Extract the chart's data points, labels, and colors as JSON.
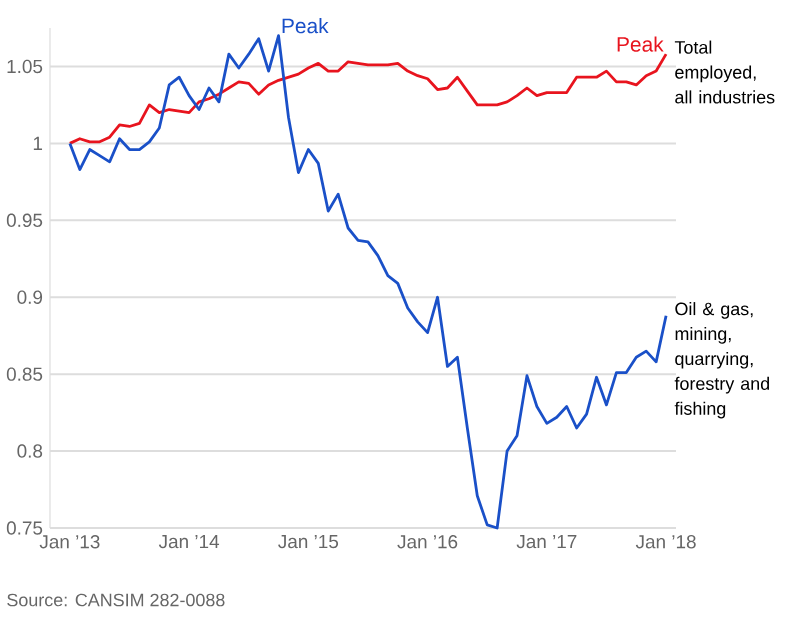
{
  "chart_data": {
    "type": "line",
    "x": [
      "2013-01",
      "2013-02",
      "2013-03",
      "2013-04",
      "2013-05",
      "2013-06",
      "2013-07",
      "2013-08",
      "2013-09",
      "2013-10",
      "2013-11",
      "2013-12",
      "2014-01",
      "2014-02",
      "2014-03",
      "2014-04",
      "2014-05",
      "2014-06",
      "2014-07",
      "2014-08",
      "2014-09",
      "2014-10",
      "2014-11",
      "2014-12",
      "2015-01",
      "2015-02",
      "2015-03",
      "2015-04",
      "2015-05",
      "2015-06",
      "2015-07",
      "2015-08",
      "2015-09",
      "2015-10",
      "2015-11",
      "2015-12",
      "2016-01",
      "2016-02",
      "2016-03",
      "2016-04",
      "2016-05",
      "2016-06",
      "2016-07",
      "2016-08",
      "2016-09",
      "2016-10",
      "2016-11",
      "2016-12",
      "2017-01",
      "2017-02",
      "2017-03",
      "2017-04",
      "2017-05",
      "2017-06",
      "2017-07",
      "2017-08",
      "2017-09",
      "2017-10",
      "2017-11",
      "2017-12",
      "2018-01"
    ],
    "series": [
      {
        "name": "Total employed, all industries",
        "color": "#e8141e",
        "values": [
          1.0,
          1.003,
          1.001,
          1.001,
          1.004,
          1.012,
          1.011,
          1.013,
          1.025,
          1.02,
          1.022,
          1.021,
          1.02,
          1.027,
          1.029,
          1.032,
          1.036,
          1.04,
          1.039,
          1.032,
          1.038,
          1.041,
          1.043,
          1.045,
          1.049,
          1.052,
          1.047,
          1.047,
          1.053,
          1.052,
          1.051,
          1.051,
          1.051,
          1.052,
          1.047,
          1.044,
          1.042,
          1.035,
          1.036,
          1.043,
          1.034,
          1.025,
          1.025,
          1.025,
          1.027,
          1.031,
          1.036,
          1.031,
          1.033,
          1.033,
          1.033,
          1.043,
          1.043,
          1.043,
          1.047,
          1.04,
          1.04,
          1.038,
          1.044,
          1.047,
          1.058
        ]
      },
      {
        "name": "Oil & gas, mining, quarrying, forestry and fishing",
        "color": "#1a50c8",
        "values": [
          1.0,
          0.983,
          0.996,
          0.992,
          0.988,
          1.003,
          0.996,
          0.996,
          1.001,
          1.01,
          1.038,
          1.043,
          1.031,
          1.022,
          1.036,
          1.027,
          1.058,
          1.049,
          1.058,
          1.068,
          1.047,
          1.07,
          1.017,
          0.981,
          0.996,
          0.987,
          0.956,
          0.967,
          0.945,
          0.937,
          0.936,
          0.927,
          0.914,
          0.909,
          0.893,
          0.884,
          0.877,
          0.9,
          0.855,
          0.861,
          0.815,
          0.771,
          0.752,
          0.75,
          0.8,
          0.81,
          0.849,
          0.829,
          0.818,
          0.822,
          0.829,
          0.815,
          0.824,
          0.848,
          0.83,
          0.851,
          0.851,
          0.861,
          0.865,
          0.858,
          0.888
        ]
      }
    ],
    "xlim": [
      "2012-11",
      "2018-02"
    ],
    "xticks": [
      {
        "value": "2013-01",
        "label": "Jan ’13"
      },
      {
        "value": "2014-01",
        "label": "Jan ’14"
      },
      {
        "value": "2015-01",
        "label": "Jan ’15"
      },
      {
        "value": "2016-01",
        "label": "Jan ’16"
      },
      {
        "value": "2017-01",
        "label": "Jan ’17"
      },
      {
        "value": "2018-01",
        "label": "Jan ’18"
      }
    ],
    "ylim": [
      0.75,
      1.075
    ],
    "yticks": [
      0.75,
      0.8,
      0.85,
      0.9,
      0.95,
      1,
      1.05
    ],
    "grid": "y",
    "legend": false,
    "marker": "none",
    "line_style": "solid",
    "annotations": [
      {
        "text": "Peak",
        "x": "2014-10",
        "y": 1.07
      },
      {
        "text": "Peak",
        "x": "2018-01",
        "y": 1.058
      },
      "Source: CANSIM 282-0088"
    ]
  }
}
